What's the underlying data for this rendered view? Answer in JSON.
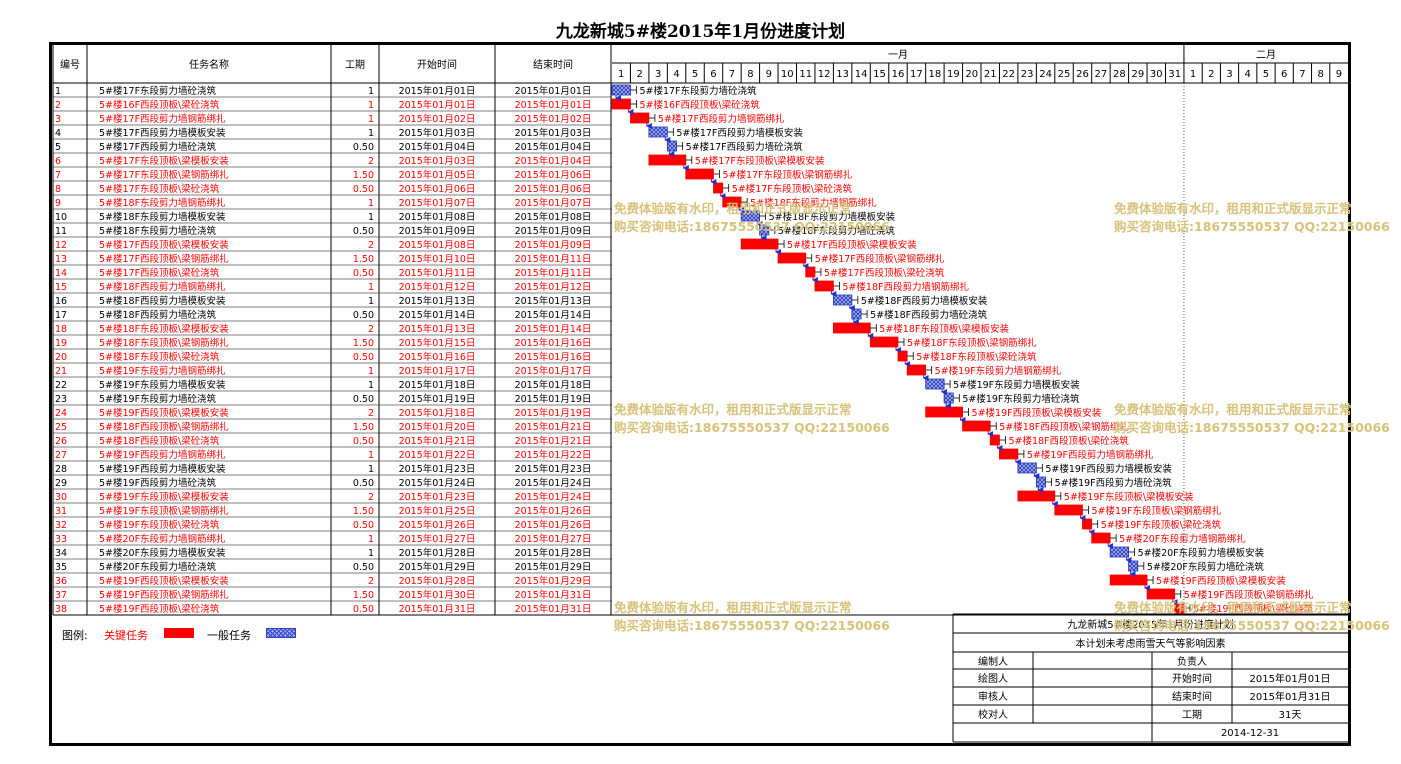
{
  "title": "九龙新城5#楼2015年1月份进度计划",
  "headers": {
    "no": "编号",
    "name": "任务名称",
    "dur": "工期",
    "start": "开始时间",
    "end": "结束时间",
    "month1": "一月",
    "month2": "二月"
  },
  "days_jan": [
    "1",
    "2",
    "3",
    "4",
    "5",
    "6",
    "7",
    "8",
    "9",
    "10",
    "11",
    "12",
    "13",
    "14",
    "15",
    "16",
    "17",
    "18",
    "19",
    "20",
    "21",
    "22",
    "23",
    "24",
    "25",
    "26",
    "27",
    "28",
    "29",
    "30",
    "31"
  ],
  "days_feb": [
    "1",
    "2",
    "3",
    "4",
    "5",
    "6",
    "7",
    "8",
    "9"
  ],
  "colors": {
    "critical": "#ff0000",
    "normal": "#3344cc",
    "normal_fill": "#aab8ee",
    "watermark": "#d8c27a"
  },
  "tasks": [
    {
      "no": "1",
      "name": "5#楼17F东段剪力墙砼浇筑",
      "dur": "1",
      "start": "2015年01月01日",
      "end": "2015年01月01日",
      "critical": false,
      "s": 1,
      "d": 1
    },
    {
      "no": "2",
      "name": "5#楼16F西段顶板\\梁砼浇筑",
      "dur": "1",
      "start": "2015年01月01日",
      "end": "2015年01月01日",
      "critical": true,
      "s": 1,
      "d": 1
    },
    {
      "no": "3",
      "name": "5#楼17F西段剪力墙钢筋绑扎",
      "dur": "1",
      "start": "2015年01月02日",
      "end": "2015年01月02日",
      "critical": true,
      "s": 2,
      "d": 1
    },
    {
      "no": "4",
      "name": "5#楼17F西段剪力墙模板安装",
      "dur": "1",
      "start": "2015年01月03日",
      "end": "2015年01月03日",
      "critical": false,
      "s": 3,
      "d": 1
    },
    {
      "no": "5",
      "name": "5#楼17F西段剪力墙砼浇筑",
      "dur": "0.50",
      "start": "2015年01月04日",
      "end": "2015年01月04日",
      "critical": false,
      "s": 4,
      "d": 0.5
    },
    {
      "no": "6",
      "name": "5#楼17F东段顶板\\梁模板安装",
      "dur": "2",
      "start": "2015年01月03日",
      "end": "2015年01月04日",
      "critical": true,
      "s": 3,
      "d": 2
    },
    {
      "no": "7",
      "name": "5#楼17F东段顶板\\梁钢筋绑扎",
      "dur": "1.50",
      "start": "2015年01月05日",
      "end": "2015年01月06日",
      "critical": true,
      "s": 5,
      "d": 1.5
    },
    {
      "no": "8",
      "name": "5#楼17F东段顶板\\梁砼浇筑",
      "dur": "0.50",
      "start": "2015年01月06日",
      "end": "2015年01月06日",
      "critical": true,
      "s": 6.5,
      "d": 0.5
    },
    {
      "no": "9",
      "name": "5#楼18F东段剪力墙钢筋绑扎",
      "dur": "1",
      "start": "2015年01月07日",
      "end": "2015年01月07日",
      "critical": true,
      "s": 7,
      "d": 1
    },
    {
      "no": "10",
      "name": "5#楼18F东段剪力墙模板安装",
      "dur": "1",
      "start": "2015年01月08日",
      "end": "2015年01月08日",
      "critical": false,
      "s": 8,
      "d": 1
    },
    {
      "no": "11",
      "name": "5#楼18F东段剪力墙砼浇筑",
      "dur": "0.50",
      "start": "2015年01月09日",
      "end": "2015年01月09日",
      "critical": false,
      "s": 9,
      "d": 0.5
    },
    {
      "no": "12",
      "name": "5#楼17F西段顶板\\梁模板安装",
      "dur": "2",
      "start": "2015年01月08日",
      "end": "2015年01月09日",
      "critical": true,
      "s": 8,
      "d": 2
    },
    {
      "no": "13",
      "name": "5#楼17F西段顶板\\梁钢筋绑扎",
      "dur": "1.50",
      "start": "2015年01月10日",
      "end": "2015年01月11日",
      "critical": true,
      "s": 10,
      "d": 1.5
    },
    {
      "no": "14",
      "name": "5#楼17F西段顶板\\梁砼浇筑",
      "dur": "0.50",
      "start": "2015年01月11日",
      "end": "2015年01月11日",
      "critical": true,
      "s": 11.5,
      "d": 0.5
    },
    {
      "no": "15",
      "name": "5#楼18F西段剪力墙钢筋绑扎",
      "dur": "1",
      "start": "2015年01月12日",
      "end": "2015年01月12日",
      "critical": true,
      "s": 12,
      "d": 1
    },
    {
      "no": "16",
      "name": "5#楼18F西段剪力墙模板安装",
      "dur": "1",
      "start": "2015年01月13日",
      "end": "2015年01月13日",
      "critical": false,
      "s": 13,
      "d": 1
    },
    {
      "no": "17",
      "name": "5#楼18F西段剪力墙砼浇筑",
      "dur": "0.50",
      "start": "2015年01月14日",
      "end": "2015年01月14日",
      "critical": false,
      "s": 14,
      "d": 0.5
    },
    {
      "no": "18",
      "name": "5#楼18F东段顶板\\梁模板安装",
      "dur": "2",
      "start": "2015年01月13日",
      "end": "2015年01月14日",
      "critical": true,
      "s": 13,
      "d": 2
    },
    {
      "no": "19",
      "name": "5#楼18F东段顶板\\梁钢筋绑扎",
      "dur": "1.50",
      "start": "2015年01月15日",
      "end": "2015年01月16日",
      "critical": true,
      "s": 15,
      "d": 1.5
    },
    {
      "no": "20",
      "name": "5#楼18F东段顶板\\梁砼浇筑",
      "dur": "0.50",
      "start": "2015年01月16日",
      "end": "2015年01月16日",
      "critical": true,
      "s": 16.5,
      "d": 0.5
    },
    {
      "no": "21",
      "name": "5#楼19F东段剪力墙钢筋绑扎",
      "dur": "1",
      "start": "2015年01月17日",
      "end": "2015年01月17日",
      "critical": true,
      "s": 17,
      "d": 1
    },
    {
      "no": "22",
      "name": "5#楼19F东段剪力墙模板安装",
      "dur": "1",
      "start": "2015年01月18日",
      "end": "2015年01月18日",
      "critical": false,
      "s": 18,
      "d": 1
    },
    {
      "no": "23",
      "name": "5#楼19F东段剪力墙砼浇筑",
      "dur": "0.50",
      "start": "2015年01月19日",
      "end": "2015年01月19日",
      "critical": false,
      "s": 19,
      "d": 0.5
    },
    {
      "no": "24",
      "name": "5#楼19F西段顶板\\梁模板安装",
      "dur": "2",
      "start": "2015年01月18日",
      "end": "2015年01月19日",
      "critical": true,
      "s": 18,
      "d": 2
    },
    {
      "no": "25",
      "name": "5#楼18F西段顶板\\梁钢筋绑扎",
      "dur": "1.50",
      "start": "2015年01月20日",
      "end": "2015年01月21日",
      "critical": true,
      "s": 20,
      "d": 1.5
    },
    {
      "no": "26",
      "name": "5#楼18F西段顶板\\梁砼浇筑",
      "dur": "0.50",
      "start": "2015年01月21日",
      "end": "2015年01月21日",
      "critical": true,
      "s": 21.5,
      "d": 0.5
    },
    {
      "no": "27",
      "name": "5#楼19F西段剪力墙钢筋绑扎",
      "dur": "1",
      "start": "2015年01月22日",
      "end": "2015年01月22日",
      "critical": true,
      "s": 22,
      "d": 1
    },
    {
      "no": "28",
      "name": "5#楼19F西段剪力墙模板安装",
      "dur": "1",
      "start": "2015年01月23日",
      "end": "2015年01月23日",
      "critical": false,
      "s": 23,
      "d": 1
    },
    {
      "no": "29",
      "name": "5#楼19F西段剪力墙砼浇筑",
      "dur": "0.50",
      "start": "2015年01月24日",
      "end": "2015年01月24日",
      "critical": false,
      "s": 24,
      "d": 0.5
    },
    {
      "no": "30",
      "name": "5#楼19F东段顶板\\梁模板安装",
      "dur": "2",
      "start": "2015年01月23日",
      "end": "2015年01月24日",
      "critical": true,
      "s": 23,
      "d": 2
    },
    {
      "no": "31",
      "name": "5#楼19F东段顶板\\梁钢筋绑扎",
      "dur": "1.50",
      "start": "2015年01月25日",
      "end": "2015年01月26日",
      "critical": true,
      "s": 25,
      "d": 1.5
    },
    {
      "no": "32",
      "name": "5#楼19F东段顶板\\梁砼浇筑",
      "dur": "0.50",
      "start": "2015年01月26日",
      "end": "2015年01月26日",
      "critical": true,
      "s": 26.5,
      "d": 0.5
    },
    {
      "no": "33",
      "name": "5#楼20F东段剪力墙钢筋绑扎",
      "dur": "1",
      "start": "2015年01月27日",
      "end": "2015年01月27日",
      "critical": true,
      "s": 27,
      "d": 1
    },
    {
      "no": "34",
      "name": "5#楼20F东段剪力墙模板安装",
      "dur": "1",
      "start": "2015年01月28日",
      "end": "2015年01月28日",
      "critical": false,
      "s": 28,
      "d": 1
    },
    {
      "no": "35",
      "name": "5#楼20F东段剪力墙砼浇筑",
      "dur": "0.50",
      "start": "2015年01月29日",
      "end": "2015年01月29日",
      "critical": false,
      "s": 29,
      "d": 0.5
    },
    {
      "no": "36",
      "name": "5#楼19F西段顶板\\梁模板安装",
      "dur": "2",
      "start": "2015年01月28日",
      "end": "2015年01月29日",
      "critical": true,
      "s": 28,
      "d": 2
    },
    {
      "no": "37",
      "name": "5#楼19F西段顶板\\梁钢筋绑扎",
      "dur": "1.50",
      "start": "2015年01月30日",
      "end": "2015年01月31日",
      "critical": true,
      "s": 30,
      "d": 1.5
    },
    {
      "no": "38",
      "name": "5#楼19F西段顶板\\梁砼浇筑",
      "dur": "0.50",
      "start": "2015年01月31日",
      "end": "2015年01月31日",
      "critical": true,
      "s": 31.5,
      "d": 0.5
    }
  ],
  "legend": {
    "label": "图例:",
    "critical": "关键任务",
    "normal": "一般任务"
  },
  "info": {
    "title": "九龙新城5#楼2015年1月份进度计划",
    "note": "本计划未考虑雨雪天气等影响因素",
    "editor": "编制人",
    "drawer": "绘图人",
    "reviewer": "审核人",
    "checker": "校对人",
    "owner": "负责人",
    "start_label": "开始时间",
    "start_value": "2015年01月01日",
    "end_label": "结束时间",
    "end_value": "2015年01月31日",
    "dur_label": "工期",
    "dur_value": "31天",
    "date": "2014-12-31"
  },
  "watermark": {
    "line1": "免费体验版有水印，租用和正式版显示正常",
    "line2": "购买咨询电话:18675550537 QQ:22150066"
  }
}
